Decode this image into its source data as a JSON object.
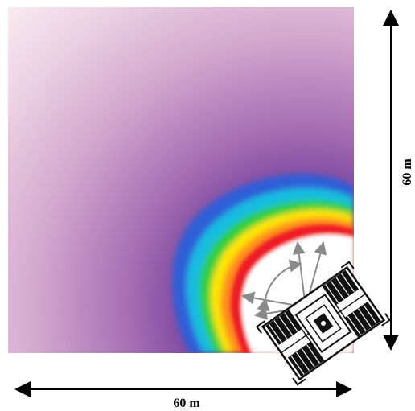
{
  "figure": {
    "x_dimension": "60 m",
    "y_dimension": "60 m",
    "colors": {
      "background_light": "#f7e6ef",
      "field_mid": "#a36ab0",
      "field_dark": "#5a2a8c",
      "blue": "#2d6ee6",
      "cyan": "#19c0e0",
      "green": "#2fcf2f",
      "yellow": "#ffe800",
      "orange": "#ff8a1a",
      "red": "#ee1c25",
      "vehicle_stroke": "#111111",
      "sweep_gray": "#8a8a8a"
    },
    "icons": {
      "vehicle": "rover-vehicle-icon",
      "sweep": "sweep-arc-icon"
    }
  }
}
